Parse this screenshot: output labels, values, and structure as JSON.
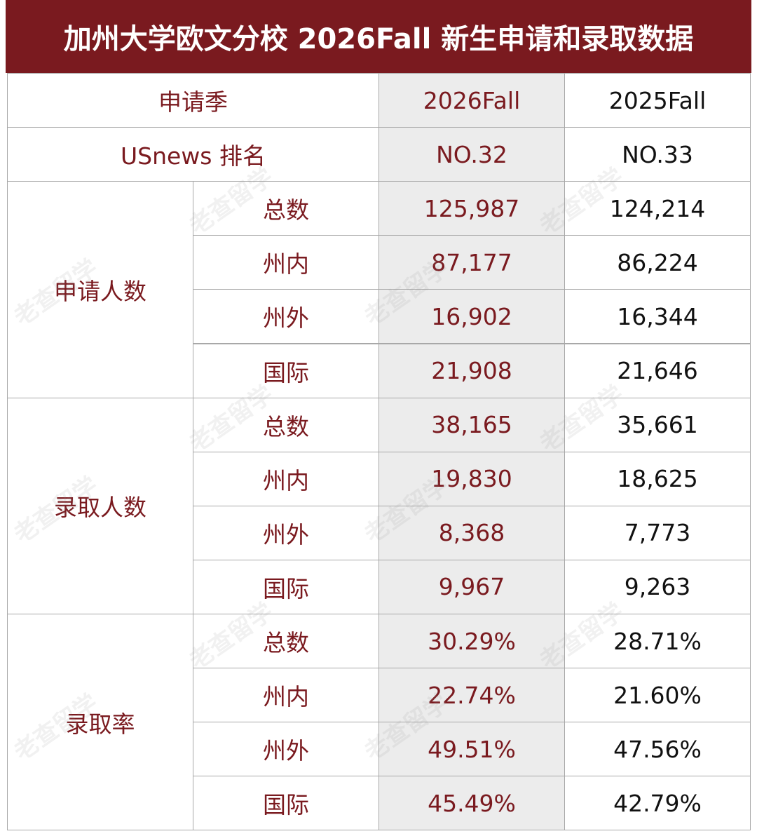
{
  "title": "加州大学欧文分校 2026Fall 新生申请和录取数据",
  "header": [
    "申请季",
    "2026Fall",
    "2025Fall"
  ],
  "ranking": [
    "USnews 排名",
    "NO.32",
    "NO.33"
  ],
  "groups": [
    {
      "label": "申请人数",
      "rows": [
        [
          "总数",
          "125,987",
          "124,214"
        ],
        [
          "州内",
          "87,177",
          "86,224"
        ],
        [
          "州外",
          "16,902",
          "16,344"
        ],
        [
          "国际",
          "21,908",
          "21,646"
        ]
      ]
    },
    {
      "label": "录取人数",
      "rows": [
        [
          "总数",
          "38,165",
          "35,661"
        ],
        [
          "州内",
          "19,830",
          "18,625"
        ],
        [
          "州外",
          "8,368",
          "7,773"
        ],
        [
          "国际",
          "9,967",
          "9,263"
        ]
      ]
    },
    {
      "label": "录取率",
      "rows": [
        [
          "总数",
          "30.29%",
          "28.71%"
        ],
        [
          "州内",
          "22.74%",
          "21.60%"
        ],
        [
          "州外",
          "49.51%",
          "47.56%"
        ],
        [
          "国际",
          "45.49%",
          "42.79%"
        ]
      ]
    }
  ],
  "watermark": "老查留学"
}
